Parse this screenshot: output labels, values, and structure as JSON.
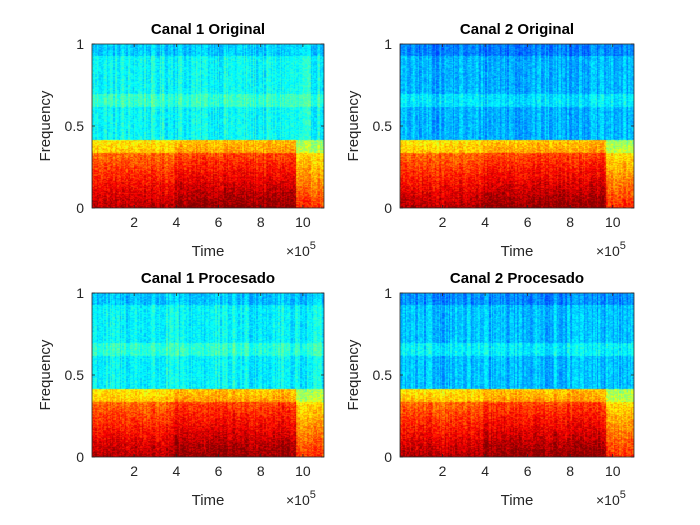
{
  "chart_data": [
    {
      "type": "heatmap",
      "title": "Canal 1 Original",
      "xlabel": "Time",
      "ylabel": "Frequency",
      "xlim": [
        0,
        1100000
      ],
      "ylim": [
        0,
        1
      ],
      "xticks": [
        200000,
        400000,
        600000,
        800000,
        1000000
      ],
      "xtick_labels": [
        "2",
        "4",
        "6",
        "8",
        "10"
      ],
      "yticks": [
        0,
        0.5,
        1
      ],
      "ytick_labels": [
        "0",
        "0.5",
        "1"
      ],
      "x_exponent_label": "×10^5",
      "colormap": "jet",
      "high_band_level": 0.38,
      "grid": false
    },
    {
      "type": "heatmap",
      "title": "Canal 2 Original",
      "xlabel": "Time",
      "ylabel": "Frequency",
      "xlim": [
        0,
        1100000
      ],
      "ylim": [
        0,
        1
      ],
      "xticks": [
        200000,
        400000,
        600000,
        800000,
        1000000
      ],
      "xtick_labels": [
        "2",
        "4",
        "6",
        "8",
        "10"
      ],
      "yticks": [
        0,
        0.5,
        1
      ],
      "ytick_labels": [
        "0",
        "0.5",
        "1"
      ],
      "x_exponent_label": "×10^5",
      "colormap": "jet",
      "high_band_level": 0.3,
      "grid": false
    },
    {
      "type": "heatmap",
      "title": "Canal 1 Procesado",
      "xlabel": "Time",
      "ylabel": "Frequency",
      "xlim": [
        0,
        1100000
      ],
      "ylim": [
        0,
        1
      ],
      "xticks": [
        200000,
        400000,
        600000,
        800000,
        1000000
      ],
      "xtick_labels": [
        "2",
        "4",
        "6",
        "8",
        "10"
      ],
      "yticks": [
        0,
        0.5,
        1
      ],
      "ytick_labels": [
        "0",
        "0.5",
        "1"
      ],
      "x_exponent_label": "×10^5",
      "colormap": "jet",
      "high_band_level": 0.37,
      "grid": false
    },
    {
      "type": "heatmap",
      "title": "Canal 2 Procesado",
      "xlabel": "Time",
      "ylabel": "Frequency",
      "xlim": [
        0,
        1100000
      ],
      "ylim": [
        0,
        1
      ],
      "xticks": [
        200000,
        400000,
        600000,
        800000,
        1000000
      ],
      "xtick_labels": [
        "2",
        "4",
        "6",
        "8",
        "10"
      ],
      "yticks": [
        0,
        0.5,
        1
      ],
      "ytick_labels": [
        "0",
        "0.5",
        "1"
      ],
      "x_exponent_label": "×10^5",
      "colormap": "jet",
      "high_band_level": 0.31,
      "grid": false
    }
  ]
}
